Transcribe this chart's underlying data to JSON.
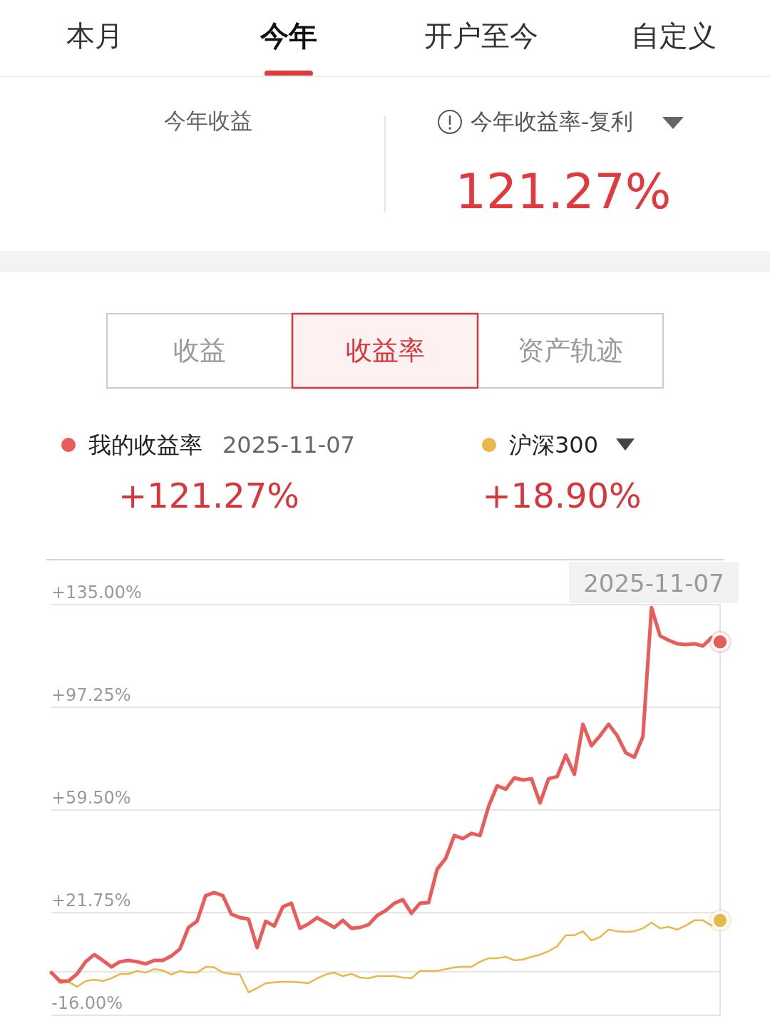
{
  "chart_data": {
    "type": "line",
    "title": "今年收益率-复利",
    "categories": [
      null,
      null,
      null,
      null,
      null,
      null,
      null,
      null,
      null,
      null,
      null,
      null,
      null,
      null,
      null,
      null,
      null,
      null,
      null,
      null,
      null,
      null,
      null,
      null,
      null,
      null,
      null,
      null,
      null,
      null,
      null,
      null,
      null,
      null,
      null,
      null,
      null,
      null,
      null,
      null,
      null,
      null,
      null,
      null,
      null,
      null,
      null,
      null,
      null,
      null,
      null,
      null,
      null,
      null,
      null,
      null,
      null,
      null,
      null,
      null,
      null,
      null,
      null,
      null,
      null,
      null,
      null,
      null,
      null,
      null,
      null,
      null,
      null,
      null,
      null,
      null,
      null,
      null,
      null
    ],
    "series": [
      {
        "name": "我的收益率",
        "color": "#e85c5a",
        "values": [
          -0.3,
          -3.4,
          -3.4,
          -0.8,
          3.7,
          6.3,
          4.2,
          1.8,
          3.7,
          4.2,
          3.7,
          2.9,
          4.2,
          4.2,
          5.8,
          8.4,
          16.3,
          18.6,
          28.0,
          29.1,
          28.0,
          21.2,
          19.9,
          19.4,
          8.9,
          18.6,
          16.8,
          23.9,
          25.2,
          16.0,
          17.6,
          19.9,
          18.1,
          16.3,
          18.9,
          16.0,
          16.3,
          17.3,
          20.7,
          22.5,
          25.2,
          26.5,
          21.5,
          25.2,
          25.4,
          37.7,
          41.7,
          50.1,
          49.0,
          50.9,
          50.1,
          60.8,
          68.4,
          67.1,
          71.3,
          70.5,
          71.0,
          62.1,
          71.0,
          71.8,
          79.7,
          72.6,
          91.0,
          83.1,
          86.8,
          91.0,
          86.8,
          80.5,
          78.9,
          86.5,
          133.9,
          123.5,
          121.9,
          120.6,
          120.3,
          120.6,
          119.8,
          122.9,
          121.3
        ]
      },
      {
        "name": "沪深300",
        "color": "#e8b84a",
        "values": [
          -0.3,
          -4.2,
          -3.7,
          -5.5,
          -3.4,
          -2.9,
          -3.4,
          -2.4,
          -0.8,
          -0.8,
          0.3,
          -0.3,
          1.0,
          0.5,
          -1.0,
          0.3,
          -0.3,
          -0.3,
          1.8,
          1.6,
          -0.3,
          -0.8,
          -1.0,
          -7.6,
          -6.0,
          -4.2,
          -3.9,
          -3.7,
          -3.7,
          -3.9,
          -4.2,
          -2.4,
          -1.0,
          -0.3,
          -1.6,
          -0.8,
          -2.1,
          -2.4,
          -1.6,
          -1.6,
          -1.6,
          -2.1,
          -2.4,
          0.3,
          0.3,
          0.3,
          1.0,
          1.6,
          1.8,
          1.8,
          3.7,
          5.0,
          5.0,
          5.5,
          4.2,
          4.5,
          5.5,
          6.3,
          7.6,
          9.4,
          13.4,
          13.4,
          14.9,
          11.5,
          12.8,
          15.5,
          14.9,
          14.7,
          14.9,
          16.0,
          18.1,
          16.0,
          16.5,
          15.5,
          17.0,
          18.9,
          18.9,
          17.0,
          18.9
        ]
      }
    ],
    "ylim": [
      -16,
      135
    ],
    "yticks": [
      {
        "value": 135,
        "label": "+135.00%"
      },
      {
        "value": 97.25,
        "label": "+97.25%"
      },
      {
        "value": 59.5,
        "label": "+59.50%"
      },
      {
        "value": 21.75,
        "label": "+21.75%"
      },
      {
        "value": 0,
        "label": null
      },
      {
        "value": -16,
        "label": "-16.00%"
      }
    ],
    "grid": "y",
    "legend": "top",
    "annotations": [
      "本月",
      "今年",
      "开户至今",
      "自定义",
      "今年收益",
      "121.27%",
      "收益",
      "收益率",
      "资产轨迹",
      "2025-11-07",
      "+121.27%",
      "+18.90%",
      "2025-11-07"
    ]
  }
}
